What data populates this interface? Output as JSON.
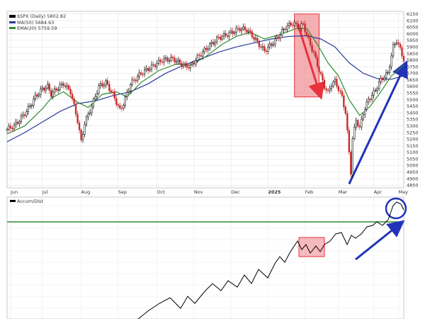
{
  "chart_data": [
    {
      "type": "candlestick",
      "title": "$SPX (Daily) 5802.82",
      "legend": [
        {
          "name": "$SPX (Daily) 5802.82",
          "color": "#000000"
        },
        {
          "name": "MA(50) 5684.63",
          "color": "#2b3a9e"
        },
        {
          "name": "EMA(20) 5759.59",
          "color": "#2e8b2e"
        }
      ],
      "x_labels": [
        "Jun",
        "Jul",
        "Aug",
        "Sep",
        "Oct",
        "Nov",
        "Dec",
        "2025",
        "Feb",
        "Mar",
        "Apr",
        "May"
      ],
      "y_ticks": [
        6150,
        6100,
        6050,
        6000,
        5950,
        5900,
        5850,
        5800,
        5750,
        5700,
        5650,
        5600,
        5550,
        5500,
        5450,
        5400,
        5350,
        5300,
        5250,
        5200,
        5150,
        5100,
        5050,
        5000,
        4950,
        4900,
        4850
      ],
      "ylim": [
        4830,
        6170
      ],
      "grid": true,
      "close_path": [
        [
          0,
          5275
        ],
        [
          4,
          5300
        ],
        [
          8,
          5360
        ],
        [
          12,
          5430
        ],
        [
          16,
          5520
        ],
        [
          20,
          5580
        ],
        [
          23,
          5600
        ],
        [
          25,
          5540
        ],
        [
          28,
          5580
        ],
        [
          32,
          5620
        ],
        [
          36,
          5560
        ],
        [
          40,
          5340
        ],
        [
          42,
          5180
        ],
        [
          44,
          5320
        ],
        [
          48,
          5450
        ],
        [
          52,
          5600
        ],
        [
          56,
          5630
        ],
        [
          60,
          5540
        ],
        [
          64,
          5420
        ],
        [
          66,
          5470
        ],
        [
          70,
          5620
        ],
        [
          76,
          5700
        ],
        [
          82,
          5750
        ],
        [
          88,
          5800
        ],
        [
          94,
          5810
        ],
        [
          100,
          5760
        ],
        [
          104,
          5750
        ],
        [
          108,
          5820
        ],
        [
          114,
          5900
        ],
        [
          120,
          5970
        ],
        [
          126,
          6000
        ],
        [
          132,
          6040
        ],
        [
          136,
          6030
        ],
        [
          140,
          5970
        ],
        [
          144,
          5900
        ],
        [
          146,
          5870
        ],
        [
          150,
          5920
        ],
        [
          154,
          5980
        ],
        [
          158,
          6050
        ],
        [
          162,
          6080
        ],
        [
          166,
          6050
        ],
        [
          168,
          6070
        ],
        [
          171,
          5950
        ],
        [
          174,
          5850
        ],
        [
          177,
          5720
        ],
        [
          180,
          5600
        ],
        [
          182,
          5550
        ],
        [
          184,
          5620
        ],
        [
          186,
          5640
        ],
        [
          188,
          5580
        ],
        [
          190,
          5520
        ],
        [
          192,
          5400
        ],
        [
          194,
          5100
        ],
        [
          195,
          4950
        ],
        [
          196,
          5200
        ],
        [
          198,
          5350
        ],
        [
          200,
          5280
        ],
        [
          202,
          5400
        ],
        [
          205,
          5500
        ],
        [
          208,
          5550
        ],
        [
          212,
          5650
        ],
        [
          216,
          5700
        ],
        [
          219,
          5900
        ],
        [
          221,
          5950
        ],
        [
          223,
          5880
        ],
        [
          225,
          5803
        ]
      ],
      "ma50_path": [
        [
          0,
          5180
        ],
        [
          10,
          5250
        ],
        [
          20,
          5330
        ],
        [
          30,
          5410
        ],
        [
          40,
          5470
        ],
        [
          50,
          5490
        ],
        [
          60,
          5530
        ],
        [
          70,
          5560
        ],
        [
          80,
          5620
        ],
        [
          90,
          5700
        ],
        [
          100,
          5760
        ],
        [
          110,
          5810
        ],
        [
          120,
          5860
        ],
        [
          130,
          5900
        ],
        [
          140,
          5930
        ],
        [
          150,
          5960
        ],
        [
          160,
          5980
        ],
        [
          170,
          5985
        ],
        [
          178,
          5960
        ],
        [
          186,
          5900
        ],
        [
          194,
          5780
        ],
        [
          202,
          5700
        ],
        [
          210,
          5660
        ],
        [
          218,
          5655
        ],
        [
          225,
          5680
        ]
      ],
      "ema20_path": [
        [
          0,
          5240
        ],
        [
          10,
          5300
        ],
        [
          20,
          5430
        ],
        [
          25,
          5510
        ],
        [
          32,
          5560
        ],
        [
          40,
          5480
        ],
        [
          46,
          5440
        ],
        [
          54,
          5540
        ],
        [
          62,
          5560
        ],
        [
          68,
          5520
        ],
        [
          76,
          5630
        ],
        [
          86,
          5720
        ],
        [
          96,
          5770
        ],
        [
          104,
          5760
        ],
        [
          112,
          5820
        ],
        [
          122,
          5920
        ],
        [
          130,
          5980
        ],
        [
          138,
          6010
        ],
        [
          146,
          5960
        ],
        [
          154,
          5990
        ],
        [
          164,
          6040
        ],
        [
          170,
          6040
        ],
        [
          176,
          5920
        ],
        [
          182,
          5780
        ],
        [
          188,
          5680
        ],
        [
          194,
          5500
        ],
        [
          200,
          5380
        ],
        [
          206,
          5450
        ],
        [
          212,
          5560
        ],
        [
          218,
          5680
        ],
        [
          225,
          5760
        ]
      ],
      "annotations": [
        {
          "type": "highlight_box",
          "x_range": [
            163,
            177
          ],
          "y_range": [
            5520,
            6150
          ],
          "color": "#e8323c"
        },
        {
          "type": "arrow",
          "from": [
            165,
            6070
          ],
          "to": [
            177,
            5560
          ],
          "color": "#e8323c"
        },
        {
          "type": "arrow",
          "from": [
            194,
            4860
          ],
          "to": [
            225,
            5740
          ],
          "color": "#2233bb"
        }
      ]
    },
    {
      "type": "line",
      "title": "Accum/Dist",
      "x_labels": [],
      "reference_line": {
        "color": "#2e8b2e"
      },
      "annotations": [
        {
          "type": "highlight_box",
          "color": "#e8323c"
        },
        {
          "type": "circle",
          "color": "#2233bb"
        },
        {
          "type": "arrow",
          "color": "#2233bb"
        }
      ]
    }
  ]
}
